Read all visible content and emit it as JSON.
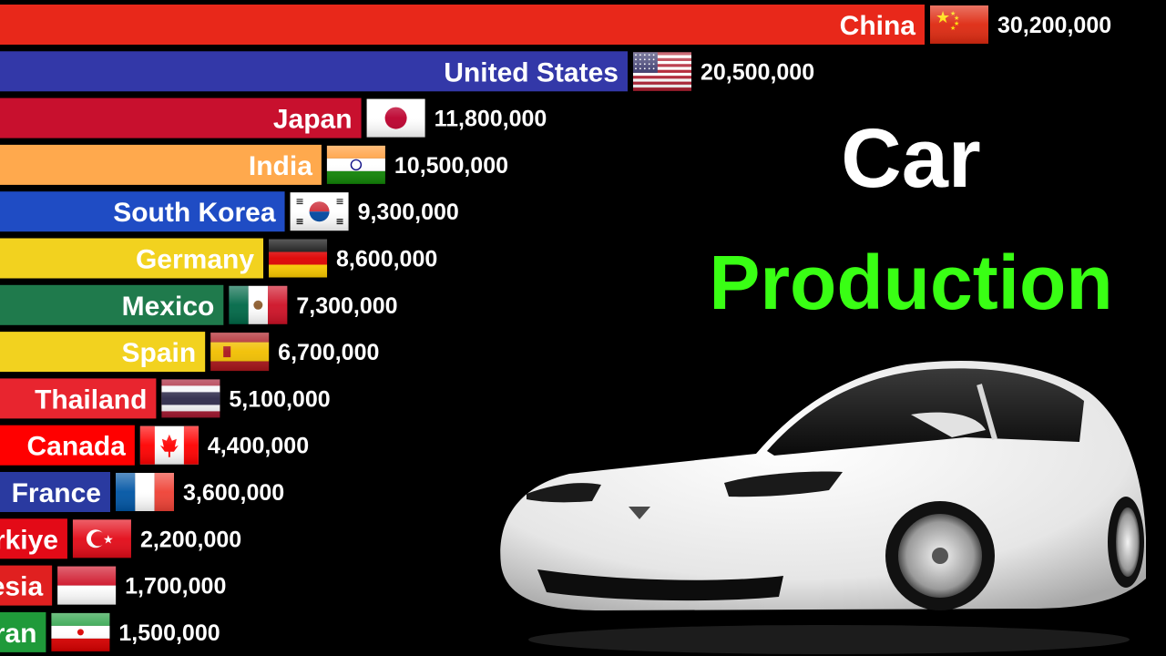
{
  "title": {
    "line1": "Car",
    "line2": "Production"
  },
  "chart_data": {
    "type": "bar",
    "orientation": "horizontal",
    "categories": [
      "China",
      "United States",
      "Japan",
      "India",
      "South Korea",
      "Germany",
      "Mexico",
      "Spain",
      "Thailand",
      "Canada",
      "France",
      "Türkiye",
      "Indonesia",
      "Iran"
    ],
    "values": [
      30200000,
      20500000,
      11800000,
      10500000,
      9300000,
      8600000,
      7300000,
      6700000,
      5100000,
      4400000,
      3600000,
      2200000,
      1700000,
      1500000
    ],
    "value_labels": [
      "30,200,000",
      "20,500,000",
      "11,800,000",
      "10,500,000",
      "9,300,000",
      "8,600,000",
      "7,300,000",
      "6,700,000",
      "5,100,000",
      "4,400,000",
      "3,600,000",
      "2,200,000",
      "1,700,000",
      "1,500,000"
    ],
    "colors": [
      "#e8281a",
      "#3338a8",
      "#c8102e",
      "#ffa94d",
      "#1f4cc4",
      "#f2d21f",
      "#1f7a4c",
      "#f2d21f",
      "#e8252f",
      "#ff0000",
      "#2a3aa0",
      "#e30a17",
      "#e02020",
      "#1f9a3a"
    ],
    "flags": [
      "china-flag",
      "united-states-flag",
      "japan-flag",
      "india-flag",
      "south-korea-flag",
      "germany-flag",
      "mexico-flag",
      "spain-flag",
      "thailand-flag",
      "canada-flag",
      "france-flag",
      "turkiye-flag",
      "indonesia-flag",
      "iran-flag"
    ],
    "grid": false,
    "legend": "none"
  }
}
